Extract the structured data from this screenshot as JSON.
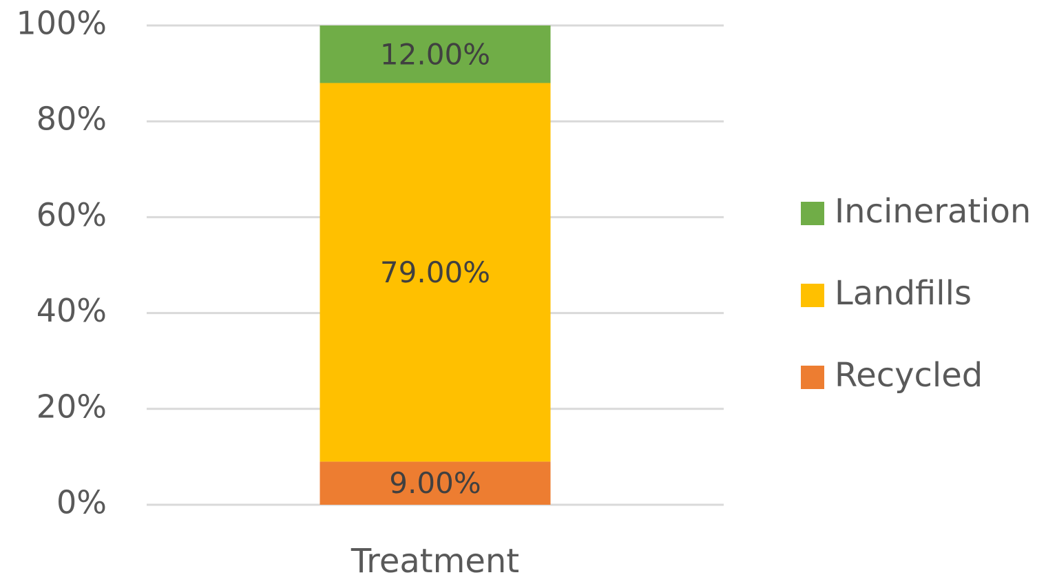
{
  "chart_data": {
    "type": "stacked_bar",
    "categories": [
      "Treatment"
    ],
    "series": [
      {
        "name": "Recycled",
        "color": "#ed7d31",
        "values": [
          9
        ],
        "value_labels": [
          "9.00%"
        ]
      },
      {
        "name": "Landfills",
        "color": "#ffc000",
        "values": [
          79
        ],
        "value_labels": [
          "79.00%"
        ]
      },
      {
        "name": "Incineration",
        "color": "#70ad47",
        "values": [
          12
        ],
        "value_labels": [
          "12.00%"
        ]
      }
    ],
    "ylim": [
      0,
      100
    ],
    "yticks": [
      {
        "value": 0,
        "label": "0%"
      },
      {
        "value": 20,
        "label": "20%"
      },
      {
        "value": 40,
        "label": "40%"
      },
      {
        "value": 60,
        "label": "60%"
      },
      {
        "value": 80,
        "label": "80%"
      },
      {
        "value": 100,
        "label": "100%"
      }
    ],
    "grid": true,
    "legend": "right"
  }
}
